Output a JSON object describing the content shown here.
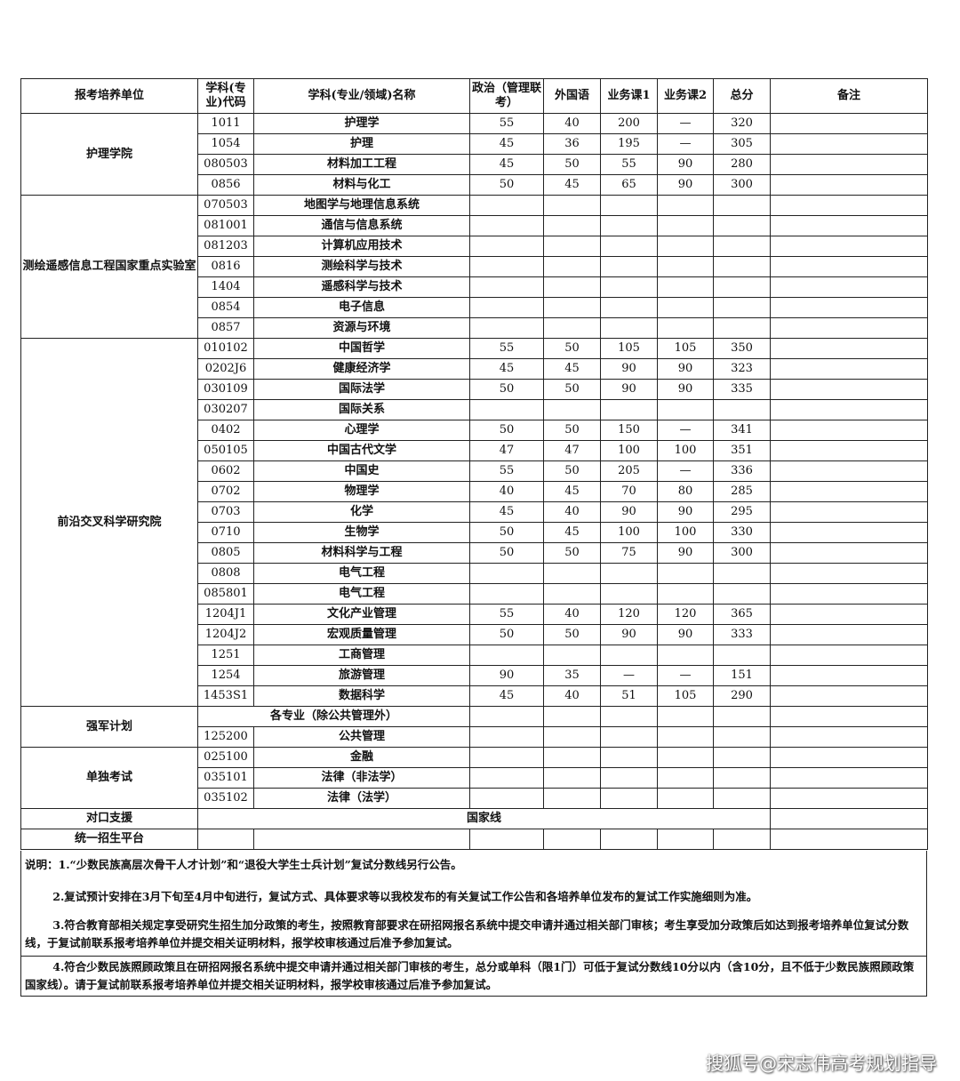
{
  "headers": [
    "报考培养单位",
    "学科(专业)代码",
    "学科(专业/领域)名称",
    "政治（管理联考）",
    "外国语",
    "业务课1",
    "业务课2",
    "总分",
    "备注"
  ],
  "groups": [
    {
      "unit": "护理学院",
      "rows": [
        [
          "1011",
          "护理学",
          "55",
          "40",
          "200",
          "—",
          "320"
        ],
        [
          "1054",
          "护理",
          "45",
          "36",
          "195",
          "—",
          "305"
        ],
        [
          "080503",
          "材料加工工程",
          "45",
          "50",
          "55",
          "90",
          "280"
        ],
        [
          "0856",
          "材料与化工",
          "50",
          "45",
          "65",
          "90",
          "300"
        ]
      ]
    },
    {
      "unit": "测绘遥感信息工程国家重点实验室",
      "rows": [
        [
          "070503",
          "地图学与地理信息系统",
          "",
          "",
          "",
          "",
          ""
        ],
        [
          "081001",
          "通信与信息系统",
          "",
          "",
          "",
          "",
          ""
        ],
        [
          "081203",
          "计算机应用技术",
          "",
          "",
          "",
          "",
          ""
        ],
        [
          "0816",
          "测绘科学与技术",
          "",
          "",
          "",
          "",
          ""
        ],
        [
          "1404",
          "遥感科学与技术",
          "",
          "",
          "",
          "",
          ""
        ],
        [
          "0854",
          "电子信息",
          "",
          "",
          "",
          "",
          ""
        ],
        [
          "0857",
          "资源与环境",
          "",
          "",
          "",
          "",
          ""
        ]
      ]
    },
    {
      "unit": "前沿交叉科学研究院",
      "rows": [
        [
          "010102",
          "中国哲学",
          "55",
          "50",
          "105",
          "105",
          "350"
        ],
        [
          "0202J6",
          "健康经济学",
          "45",
          "45",
          "90",
          "90",
          "323"
        ],
        [
          "030109",
          "国际法学",
          "50",
          "50",
          "90",
          "90",
          "335"
        ],
        [
          "030207",
          "国际关系",
          "",
          "",
          "",
          "",
          ""
        ],
        [
          "0402",
          "心理学",
          "50",
          "50",
          "150",
          "—",
          "341"
        ],
        [
          "050105",
          "中国古代文学",
          "47",
          "47",
          "100",
          "100",
          "351"
        ],
        [
          "0602",
          "中国史",
          "55",
          "50",
          "205",
          "—",
          "336"
        ],
        [
          "0702",
          "物理学",
          "40",
          "45",
          "70",
          "80",
          "285"
        ],
        [
          "0703",
          "化学",
          "45",
          "40",
          "90",
          "90",
          "295"
        ],
        [
          "0710",
          "生物学",
          "50",
          "45",
          "100",
          "100",
          "330"
        ],
        [
          "0805",
          "材料科学与工程",
          "50",
          "50",
          "75",
          "90",
          "300"
        ],
        [
          "0808",
          "电气工程",
          "",
          "",
          "",
          "",
          ""
        ],
        [
          "085801",
          "电气工程",
          "",
          "",
          "",
          "",
          ""
        ],
        [
          "1204J1",
          "文化产业管理",
          "55",
          "40",
          "120",
          "120",
          "365"
        ],
        [
          "1204J2",
          "宏观质量管理",
          "50",
          "50",
          "90",
          "90",
          "333"
        ],
        [
          "1251",
          "工商管理",
          "",
          "",
          "",
          "",
          ""
        ],
        [
          "1254",
          "旅游管理",
          "90",
          "35",
          "—",
          "—",
          "151"
        ],
        [
          "1453S1",
          "数据科学",
          "45",
          "40",
          "51",
          "105",
          "290"
        ]
      ]
    },
    {
      "unit": "强军计划",
      "rows": [
        [
          "",
          "各专业（除公共管理外）",
          "",
          "",
          "",
          "",
          ""
        ],
        [
          "125200",
          "公共管理",
          "",
          "",
          "",
          "",
          ""
        ]
      ]
    },
    {
      "unit": "单独考试",
      "rows": [
        [
          "025100",
          "金融",
          "",
          "",
          "",
          "",
          ""
        ],
        [
          "035101",
          "法律（非法学）",
          "",
          "",
          "",
          "",
          ""
        ],
        [
          "035102",
          "法律（法学）",
          "",
          "",
          "",
          "",
          ""
        ]
      ]
    }
  ],
  "duikou": {
    "unit": "对口支援",
    "value": "国家线"
  },
  "tongyi": {
    "unit": "统一招生平台"
  },
  "notes": [
    "说明：1.“少数民族高层次骨干人才计划”和“退役大学生士兵计划”复试分数线另行公告。",
    "2.复试预计安排在3月下旬至4月中旬进行，复试方式、具体要求等以我校发布的有关复试工作公告和各培养单位发布的复试工作实施细则为准。",
    "3.符合教育部相关规定享受研究生招生加分政策的考生，按照教育部要求在研招网报名系统中提交申请并通过相关部门审核；考生享受加分政策后如达到报考培养单位复试分数线，于复试前联系报考培养单位并提交相关证明材料，报学校审核通过后准予参加复试。",
    "4.符合少数民族照顾政策且在研招网报名系统中提交申请并通过相关部门审核的考生，总分或单科（限1门）可低于复试分数线10分以内（含10分，且不低于少数民族照顾政策国家线）。请于复试前联系报考培养单位并提交相关证明材料，报学校审核通过后准予参加复试。"
  ],
  "watermark": "搜狐号@宋志伟高考规划指导"
}
